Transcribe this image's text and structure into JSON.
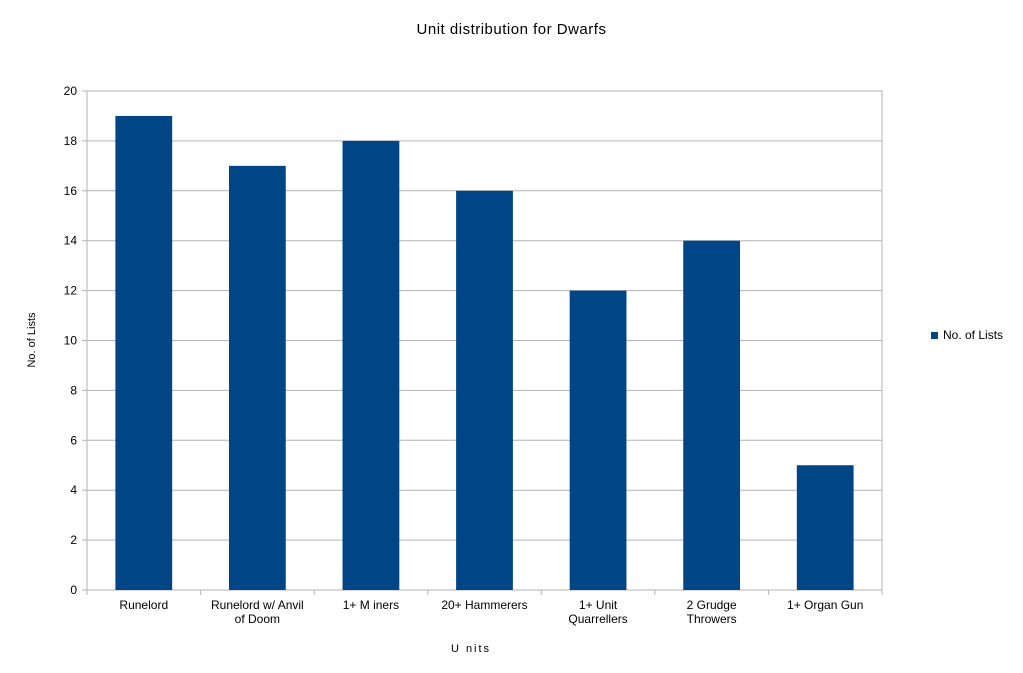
{
  "chart_data": {
    "type": "bar",
    "title": "Unit distribution for Dwarfs",
    "xlabel": "U nits",
    "ylabel": "No. of Lists",
    "categories": [
      [
        "Runelord"
      ],
      [
        "Runelord w/ Anvil",
        "of Doom"
      ],
      [
        "1+ M iners"
      ],
      [
        "20+ Hammerers"
      ],
      [
        "1+ Unit",
        "Quarrellers"
      ],
      [
        "2 Grudge",
        "Throwers"
      ],
      [
        "1+ Organ Gun"
      ]
    ],
    "series": [
      {
        "name": "No. of Lists",
        "values": [
          19,
          17,
          18,
          16,
          12,
          14,
          5
        ],
        "color": "#004586"
      }
    ],
    "ylim": [
      0,
      20
    ],
    "yticks": [
      0,
      2,
      4,
      6,
      8,
      10,
      12,
      14,
      16,
      18,
      20
    ],
    "grid": true,
    "legend": "right"
  }
}
